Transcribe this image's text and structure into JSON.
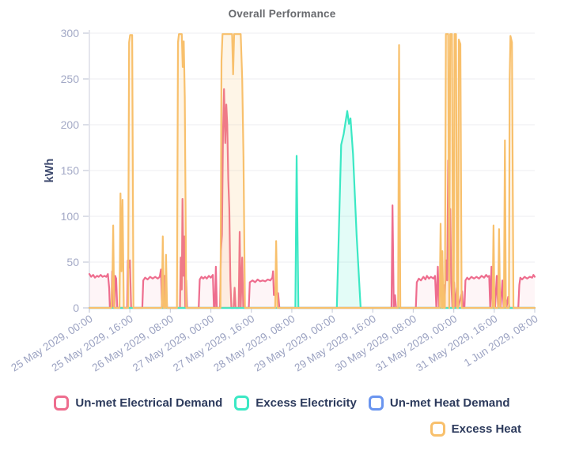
{
  "chart": {
    "title": "Overall Performance"
  },
  "legend": {
    "rows": [
      [
        {
          "label": "Un-met Electrical Demand",
          "color": "#ee6d8e"
        },
        {
          "label": "Excess Electricity",
          "color": "#3be8c4"
        },
        {
          "label": "Un-met Heat Demand",
          "color": "#6a95ef"
        }
      ],
      [
        {
          "label": "Excess Heat",
          "color": "#f8c06c"
        }
      ]
    ]
  },
  "chart_data": {
    "type": "area",
    "title": "Overall Performance",
    "xlabel": "",
    "ylabel": "kWh",
    "ylim": [
      0,
      300
    ],
    "yticks": [
      0,
      50,
      100,
      150,
      200,
      250,
      300
    ],
    "grid": true,
    "legend_position": "bottom",
    "x_unit": "hours since 25 May 2029 00:00 (tick spacing = 16 h)",
    "x_range": [
      0,
      176
    ],
    "x_labels": [
      "25 May 2029, 00:00",
      "25 May 2029, 16:00",
      "26 May 2029, 08:00",
      "27 May 2029, 00:00",
      "27 May 2029, 16:00",
      "28 May 2029, 08:00",
      "29 May 2029, 00:00",
      "29 May 2029, 16:00",
      "30 May 2029, 08:00",
      "31 May 2029, 00:00",
      "31 May 2029, 16:00",
      "1 Jun 2029, 08:00"
    ],
    "series": [
      {
        "name": "Un-met Heat Demand",
        "color": "#6a95ef",
        "fill": "none",
        "points": [
          [
            0,
            0
          ],
          [
            176,
            0
          ]
        ]
      },
      {
        "name": "Un-met Electrical Demand",
        "color": "#ee6d8e",
        "fill": "rgba(238,109,142,0.07)",
        "points": [
          [
            0,
            37
          ],
          [
            0.7,
            34
          ],
          [
            1.5,
            36
          ],
          [
            2.2,
            33
          ],
          [
            3,
            35
          ],
          [
            3.7,
            34
          ],
          [
            4.5,
            36
          ],
          [
            5.2,
            34
          ],
          [
            6,
            35
          ],
          [
            6.7,
            34
          ],
          [
            7.3,
            37
          ],
          [
            7.8,
            22
          ],
          [
            8.1,
            0
          ],
          [
            8.7,
            0
          ],
          [
            9,
            40
          ],
          [
            9.4,
            0
          ],
          [
            9.9,
            0
          ],
          [
            10.2,
            35
          ],
          [
            10.6,
            32
          ],
          [
            11,
            0
          ],
          [
            14.9,
            0
          ],
          [
            15.2,
            52
          ],
          [
            15.6,
            44
          ],
          [
            16,
            52
          ],
          [
            16.5,
            0
          ],
          [
            20.9,
            0
          ],
          [
            21.3,
            30
          ],
          [
            22,
            33
          ],
          [
            23,
            31
          ],
          [
            24,
            34
          ],
          [
            25,
            32
          ],
          [
            26,
            34
          ],
          [
            27,
            32
          ],
          [
            27.8,
            34
          ],
          [
            28.3,
            42
          ],
          [
            28.7,
            0
          ],
          [
            29.4,
            0
          ],
          [
            29.7,
            35
          ],
          [
            30.1,
            0
          ],
          [
            30.4,
            20
          ],
          [
            30.7,
            0
          ],
          [
            35.8,
            0
          ],
          [
            36.1,
            55
          ],
          [
            36.5,
            20
          ],
          [
            36.8,
            119
          ],
          [
            37.2,
            35
          ],
          [
            37.5,
            78
          ],
          [
            37.9,
            0
          ],
          [
            38.3,
            30
          ],
          [
            38.6,
            0
          ],
          [
            43.2,
            0
          ],
          [
            43.6,
            31
          ],
          [
            44.3,
            34
          ],
          [
            45,
            32
          ],
          [
            45.7,
            34
          ],
          [
            46.4,
            32
          ],
          [
            47.2,
            35
          ],
          [
            48,
            33
          ],
          [
            48.8,
            36
          ],
          [
            49.2,
            0
          ],
          [
            49.6,
            0
          ],
          [
            50,
            45
          ],
          [
            50.4,
            0
          ],
          [
            51.6,
            0
          ],
          [
            52,
            62
          ],
          [
            52.4,
            80
          ],
          [
            52.8,
            190
          ],
          [
            53.2,
            239
          ],
          [
            53.7,
            180
          ],
          [
            54.1,
            222
          ],
          [
            54.5,
            200
          ],
          [
            54.9,
            140
          ],
          [
            55.3,
            108
          ],
          [
            55.7,
            30
          ],
          [
            56.1,
            0
          ],
          [
            57,
            0
          ],
          [
            57.4,
            22
          ],
          [
            57.8,
            0
          ],
          [
            59,
            0
          ],
          [
            59.4,
            83
          ],
          [
            59.8,
            0
          ],
          [
            60.4,
            55
          ],
          [
            60.8,
            0
          ],
          [
            63,
            0
          ],
          [
            63.4,
            28
          ],
          [
            64.5,
            30
          ],
          [
            65.5,
            28
          ],
          [
            66.5,
            31
          ],
          [
            67.5,
            29
          ],
          [
            68.5,
            30
          ],
          [
            69.5,
            29
          ],
          [
            70.5,
            31
          ],
          [
            71.5,
            30
          ],
          [
            72.3,
            33
          ],
          [
            72.6,
            40
          ],
          [
            72.9,
            14
          ],
          [
            74.6,
            16
          ],
          [
            75.1,
            0
          ],
          [
            119.4,
            0
          ],
          [
            119.8,
            112
          ],
          [
            120.3,
            0
          ],
          [
            120.8,
            14
          ],
          [
            121.2,
            0
          ],
          [
            129,
            0
          ],
          [
            129.4,
            28
          ],
          [
            130.2,
            32
          ],
          [
            131,
            30
          ],
          [
            132,
            34
          ],
          [
            132.8,
            31
          ],
          [
            133.4,
            35
          ],
          [
            134.2,
            32
          ],
          [
            135,
            34
          ],
          [
            136,
            32
          ],
          [
            136.6,
            35
          ],
          [
            137.1,
            0
          ],
          [
            137.7,
            45
          ],
          [
            138.1,
            0
          ],
          [
            138.5,
            20
          ],
          [
            139,
            48
          ],
          [
            139.4,
            0
          ],
          [
            139.9,
            25
          ],
          [
            140.3,
            0
          ],
          [
            141,
            52
          ],
          [
            141.4,
            30
          ],
          [
            141.8,
            161
          ],
          [
            142.2,
            107
          ],
          [
            142.6,
            108
          ],
          [
            143,
            28
          ],
          [
            143.5,
            0
          ],
          [
            144.1,
            28
          ],
          [
            144.5,
            0
          ],
          [
            145.2,
            22
          ],
          [
            145.7,
            0
          ],
          [
            147.3,
            18
          ],
          [
            147.7,
            0
          ],
          [
            148.2,
            0
          ],
          [
            148.6,
            30
          ],
          [
            149.3,
            33
          ],
          [
            150,
            31
          ],
          [
            151,
            34
          ],
          [
            152,
            32
          ],
          [
            153,
            34
          ],
          [
            154,
            32
          ],
          [
            155,
            35
          ],
          [
            156,
            33
          ],
          [
            156.8,
            36
          ],
          [
            157.4,
            34
          ],
          [
            158,
            35
          ],
          [
            158.4,
            0
          ],
          [
            158.9,
            45
          ],
          [
            159.3,
            0
          ],
          [
            159.8,
            28
          ],
          [
            160.3,
            0
          ],
          [
            161,
            35
          ],
          [
            161.5,
            0
          ],
          [
            162,
            25
          ],
          [
            162.5,
            0
          ],
          [
            163.2,
            30
          ],
          [
            163.7,
            0
          ],
          [
            164.3,
            20
          ],
          [
            164.8,
            0
          ],
          [
            165.5,
            12
          ],
          [
            166,
            0
          ],
          [
            169.5,
            0
          ],
          [
            169.9,
            25
          ],
          [
            170.3,
            33
          ],
          [
            171,
            31
          ],
          [
            172,
            34
          ],
          [
            173,
            32
          ],
          [
            174,
            34
          ],
          [
            175,
            33
          ],
          [
            175.5,
            36
          ],
          [
            176,
            34
          ]
        ]
      },
      {
        "name": "Excess Electricity",
        "color": "#3be8c4",
        "fill": "rgba(59,232,196,0.14)",
        "points": [
          [
            0,
            0
          ],
          [
            81.4,
            0
          ],
          [
            81.9,
            166
          ],
          [
            82.6,
            0
          ],
          [
            97.8,
            0
          ],
          [
            99.5,
            178
          ],
          [
            100.5,
            190
          ],
          [
            101.9,
            215
          ],
          [
            102.6,
            201
          ],
          [
            103.2,
            207
          ],
          [
            104.2,
            168
          ],
          [
            105.6,
            80
          ],
          [
            107.2,
            0
          ],
          [
            176,
            0
          ]
        ]
      },
      {
        "name": "Excess Heat",
        "color": "#f8c06c",
        "fill": "rgba(248,192,108,0.16)",
        "points": [
          [
            0,
            0
          ],
          [
            8.7,
            0
          ],
          [
            9.1,
            30
          ],
          [
            9.4,
            90
          ],
          [
            9.8,
            0
          ],
          [
            11.9,
            0
          ],
          [
            12.3,
            125
          ],
          [
            12.7,
            40
          ],
          [
            13.1,
            118
          ],
          [
            13.6,
            0
          ],
          [
            15.3,
            0
          ],
          [
            15.7,
            290
          ],
          [
            16.1,
            298
          ],
          [
            16.9,
            298
          ],
          [
            17.4,
            0
          ],
          [
            28.6,
            0
          ],
          [
            29,
            78
          ],
          [
            29.4,
            0
          ],
          [
            30,
            0
          ],
          [
            30.3,
            58
          ],
          [
            30.7,
            0
          ],
          [
            34.6,
            0
          ],
          [
            35,
            290
          ],
          [
            35.4,
            299
          ],
          [
            36.5,
            299
          ],
          [
            36.9,
            263
          ],
          [
            37.3,
            291
          ],
          [
            37.7,
            230
          ],
          [
            38.3,
            0
          ],
          [
            51.8,
            0
          ],
          [
            52.2,
            270
          ],
          [
            52.6,
            299
          ],
          [
            56.4,
            299
          ],
          [
            56.8,
            255
          ],
          [
            57.2,
            299
          ],
          [
            59.8,
            299
          ],
          [
            60.4,
            250
          ],
          [
            60.9,
            165
          ],
          [
            61.5,
            0
          ],
          [
            73.4,
            0
          ],
          [
            73.8,
            73
          ],
          [
            74.3,
            0
          ],
          [
            122,
            0
          ],
          [
            122.4,
            287
          ],
          [
            122.9,
            0
          ],
          [
            138.4,
            0
          ],
          [
            138.8,
            92
          ],
          [
            139.2,
            0
          ],
          [
            139.5,
            62
          ],
          [
            139.9,
            0
          ],
          [
            140.5,
            0
          ],
          [
            140.9,
            299
          ],
          [
            141.8,
            299
          ],
          [
            142.2,
            0
          ],
          [
            142.6,
            299
          ],
          [
            143.3,
            299
          ],
          [
            143.7,
            0
          ],
          [
            144,
            0
          ],
          [
            144.3,
            299
          ],
          [
            144.9,
            299
          ],
          [
            145.3,
            0
          ],
          [
            145.7,
            0
          ],
          [
            146,
            293
          ],
          [
            146.6,
            288
          ],
          [
            147.1,
            0
          ],
          [
            159.3,
            0
          ],
          [
            159.7,
            90
          ],
          [
            160.1,
            0
          ],
          [
            161.5,
            0
          ],
          [
            161.9,
            86
          ],
          [
            162.3,
            0
          ],
          [
            163.8,
            0
          ],
          [
            164.2,
            183
          ],
          [
            164.6,
            0
          ],
          [
            165.8,
            0
          ],
          [
            166.1,
            250
          ],
          [
            166.4,
            297
          ],
          [
            167,
            290
          ],
          [
            167.6,
            0
          ],
          [
            176,
            0
          ]
        ]
      }
    ]
  }
}
